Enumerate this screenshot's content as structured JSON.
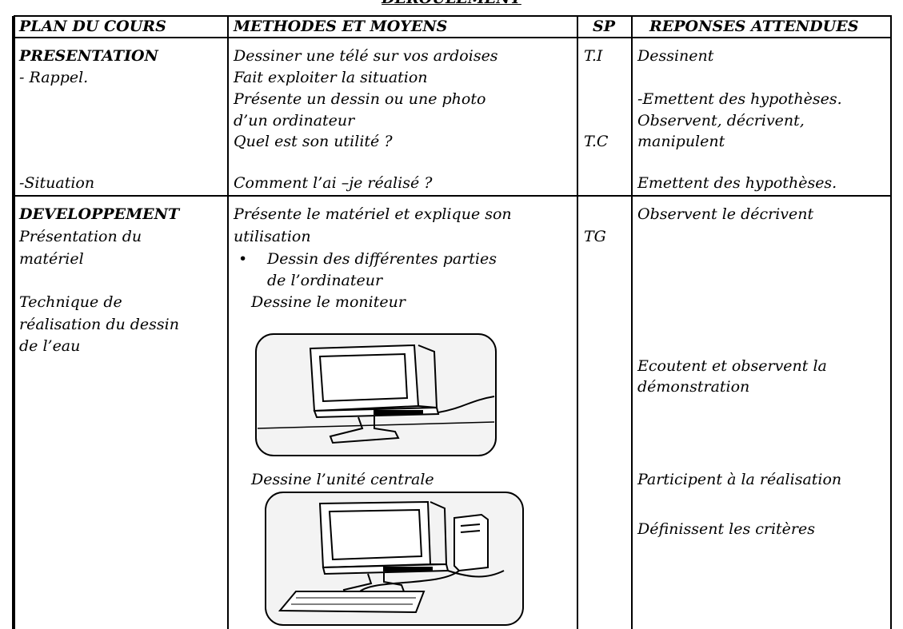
{
  "heading": "DEROULEMENT",
  "table": {
    "headers": [
      "PLAN DU COURS",
      "METHODES ET MOYENS",
      "SP",
      "REPONSES ATTENDUES"
    ],
    "rows": [
      {
        "plan": [
          "PRESENTATION",
          "- Rappel.",
          "-Situation"
        ],
        "methodes": [
          "Dessiner une télé sur vos ardoises",
          "Fait exploiter la situation",
          "Présente un dessin ou une photo",
          "d’un ordinateur",
          "Quel est son utilité ?",
          "Comment l’ai –je réalisé ?"
        ],
        "sp": [
          "T.I",
          "T.C"
        ],
        "reponses": [
          "Dessinent",
          "-Emettent des hypothèses.",
          "Observent, décrivent,",
          "manipulent",
          "Emettent des hypothèses."
        ]
      },
      {
        "plan": [
          "DEVELOPPEMENT",
          "Présentation du",
          "matériel",
          "Technique de",
          "réalisation du dessin",
          "de l’eau"
        ],
        "methodes": [
          "Présente le matériel et explique son",
          "utilisation",
          "Dessin des différentes parties",
          "de l’ordinateur",
          "Dessine le moniteur",
          "Dessine l’unité centrale"
        ],
        "sp": [
          "TG"
        ],
        "reponses": [
          "Observent le décrivent",
          "Ecoutent et observent la",
          "démonstration",
          "Participent à la réalisation",
          "Définissent les critères"
        ]
      }
    ]
  }
}
